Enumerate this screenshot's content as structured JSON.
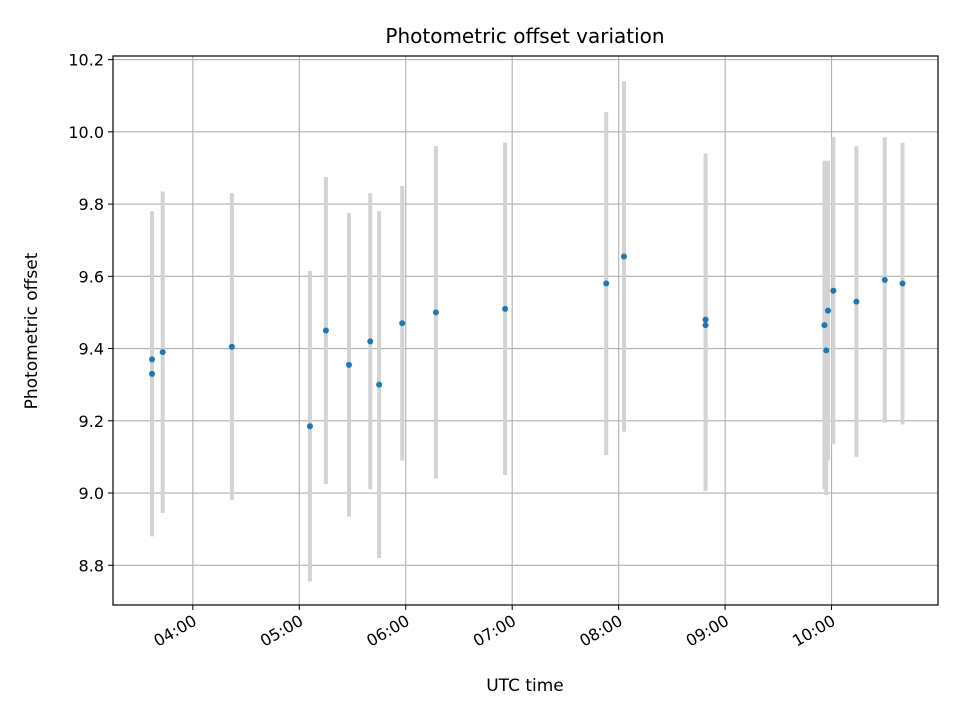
{
  "chart_data": {
    "type": "scatter",
    "title": "Photometric offset variation",
    "xlabel": "UTC time",
    "ylabel": "Photometric offset",
    "x_ticks": [
      "04:00",
      "05:00",
      "06:00",
      "07:00",
      "08:00",
      "09:00",
      "10:00"
    ],
    "y_ticks": [
      "8.8",
      "9.0",
      "9.2",
      "9.4",
      "9.6",
      "9.8",
      "10.0",
      "10.2"
    ],
    "xlim": [
      "03:15",
      "11:00"
    ],
    "ylim": [
      8.69,
      10.21
    ],
    "grid": true,
    "colors": {
      "point": "#1f77b4",
      "errorbar": "#d3d3d3",
      "grid": "#b0b0b0"
    },
    "series": [
      {
        "points": [
          {
            "x": "03:37",
            "y": 9.37,
            "yerr": 0.39
          },
          {
            "x": "03:37",
            "y": 9.33,
            "yerr": 0.45
          },
          {
            "x": "03:43",
            "y": 9.39,
            "yerr": 0.445
          },
          {
            "x": "04:22",
            "y": 9.405,
            "yerr": 0.425
          },
          {
            "x": "05:06",
            "y": 9.185,
            "yerr": 0.43
          },
          {
            "x": "05:15",
            "y": 9.45,
            "yerr": 0.425
          },
          {
            "x": "05:28",
            "y": 9.355,
            "yerr": 0.42
          },
          {
            "x": "05:40",
            "y": 9.42,
            "yerr": 0.41
          },
          {
            "x": "05:45",
            "y": 9.3,
            "yerr": 0.48
          },
          {
            "x": "05:58",
            "y": 9.47,
            "yerr": 0.38
          },
          {
            "x": "06:17",
            "y": 9.5,
            "yerr": 0.46
          },
          {
            "x": "06:56",
            "y": 9.51,
            "yerr": 0.46
          },
          {
            "x": "07:53",
            "y": 9.58,
            "yerr": 0.475
          },
          {
            "x": "08:03",
            "y": 9.655,
            "yerr": 0.485
          },
          {
            "x": "08:49",
            "y": 9.48,
            "yerr": 0.46
          },
          {
            "x": "08:49",
            "y": 9.465,
            "yerr": 0.46
          },
          {
            "x": "09:56",
            "y": 9.465,
            "yerr": 0.455
          },
          {
            "x": "09:57",
            "y": 9.395,
            "yerr": 0.4
          },
          {
            "x": "09:58",
            "y": 9.505,
            "yerr": 0.415
          },
          {
            "x": "10:01",
            "y": 9.56,
            "yerr": 0.425
          },
          {
            "x": "10:14",
            "y": 9.53,
            "yerr": 0.43
          },
          {
            "x": "10:30",
            "y": 9.59,
            "yerr": 0.395
          },
          {
            "x": "10:40",
            "y": 9.58,
            "yerr": 0.39
          }
        ]
      }
    ]
  }
}
